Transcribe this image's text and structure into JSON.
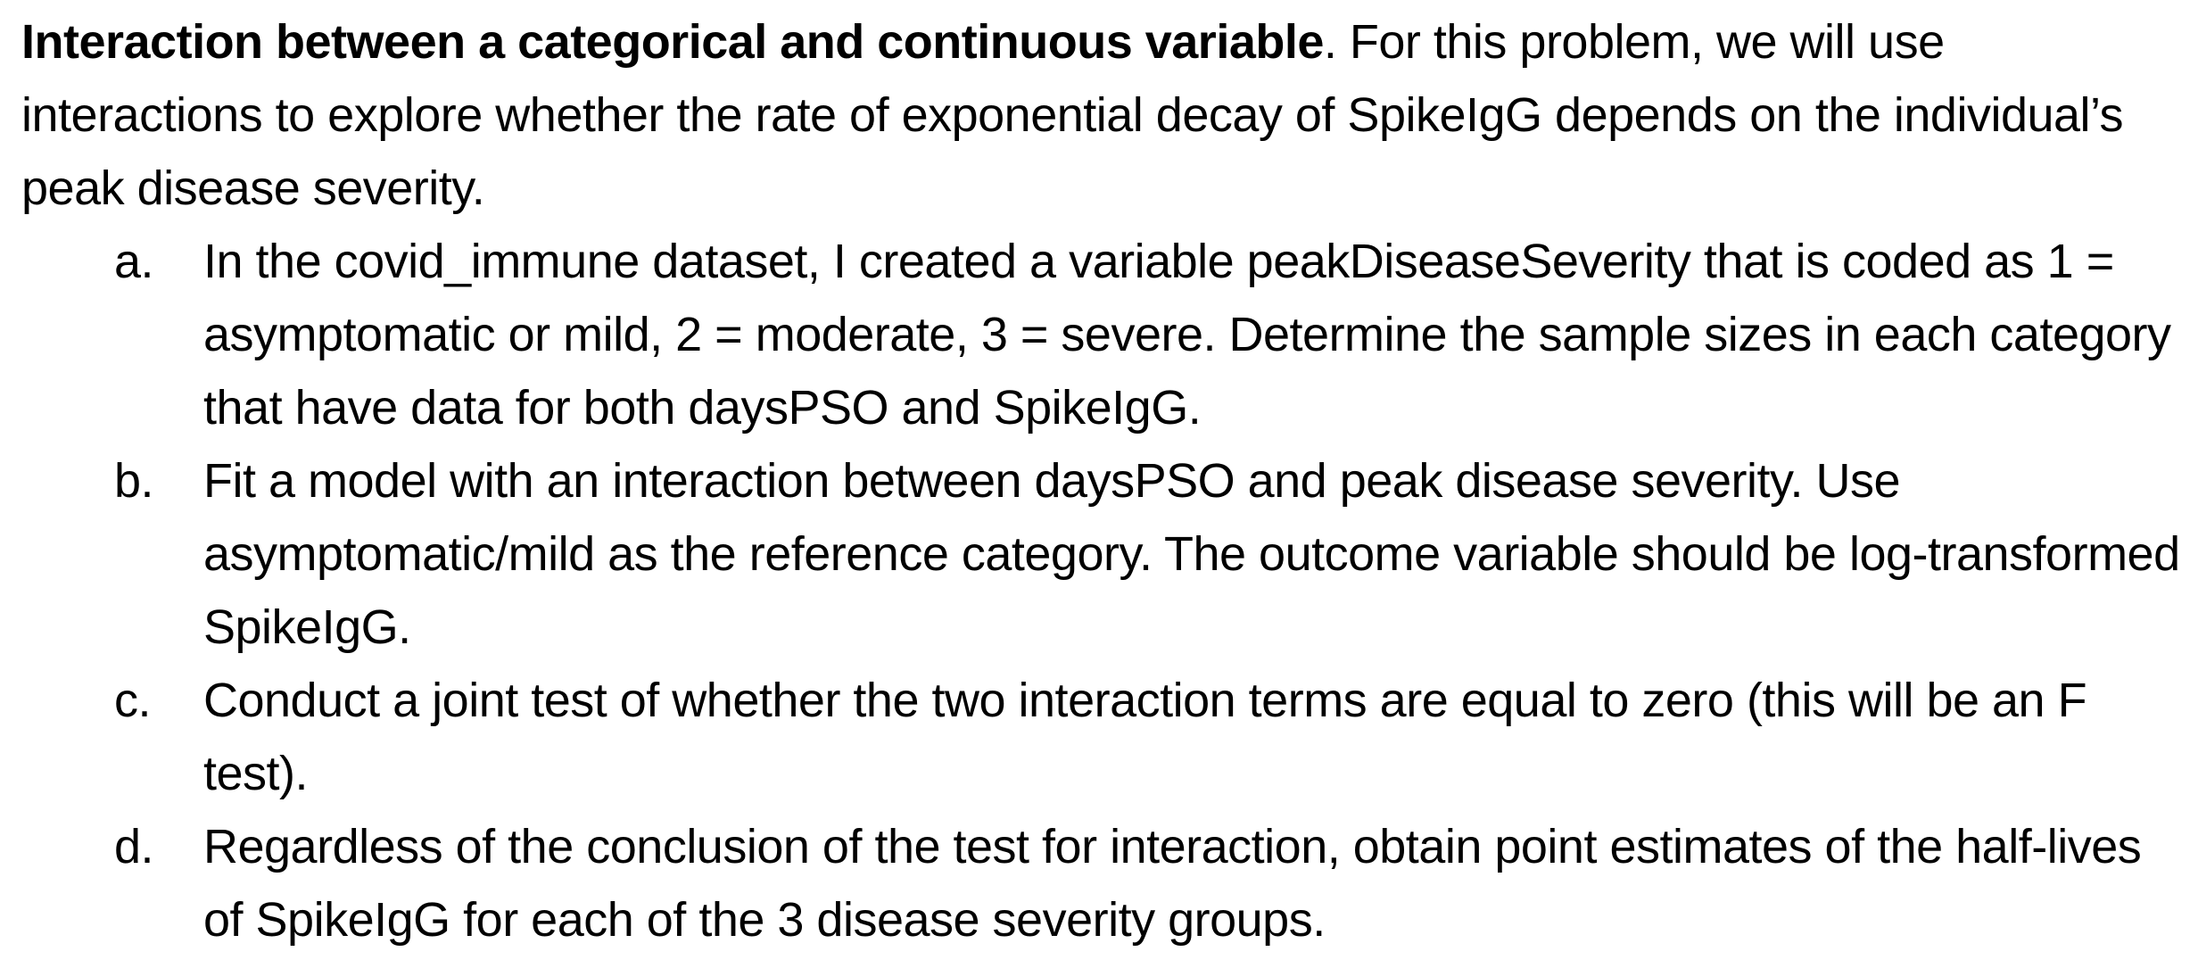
{
  "intro": {
    "bold_title": "Interaction between a categorical and continuous variable",
    "text": ". For this problem, we will use interactions to explore whether the rate of exponential decay of SpikeIgG depends on the individual’s peak disease severity."
  },
  "items": [
    {
      "marker": "a.",
      "text": "In the covid_immune dataset, I created a variable peakDiseaseSeverity that is coded as 1 = asymptomatic or mild, 2 = moderate, 3 = severe. Determine the sample sizes in each category that have data for both daysPSO and SpikeIgG."
    },
    {
      "marker": "b.",
      "text": "Fit a model with an interaction between daysPSO and peak disease severity. Use asymptomatic/mild as the reference category. The outcome variable should be log-transformed SpikeIgG."
    },
    {
      "marker": "c.",
      "text": "Conduct a joint test of whether the two interaction terms are equal to zero (this will be an F test)."
    },
    {
      "marker": "d.",
      "text": "Regardless of the conclusion of the test for interaction, obtain point estimates of the half-lives of SpikeIgG for each of the 3 disease severity groups."
    }
  ]
}
